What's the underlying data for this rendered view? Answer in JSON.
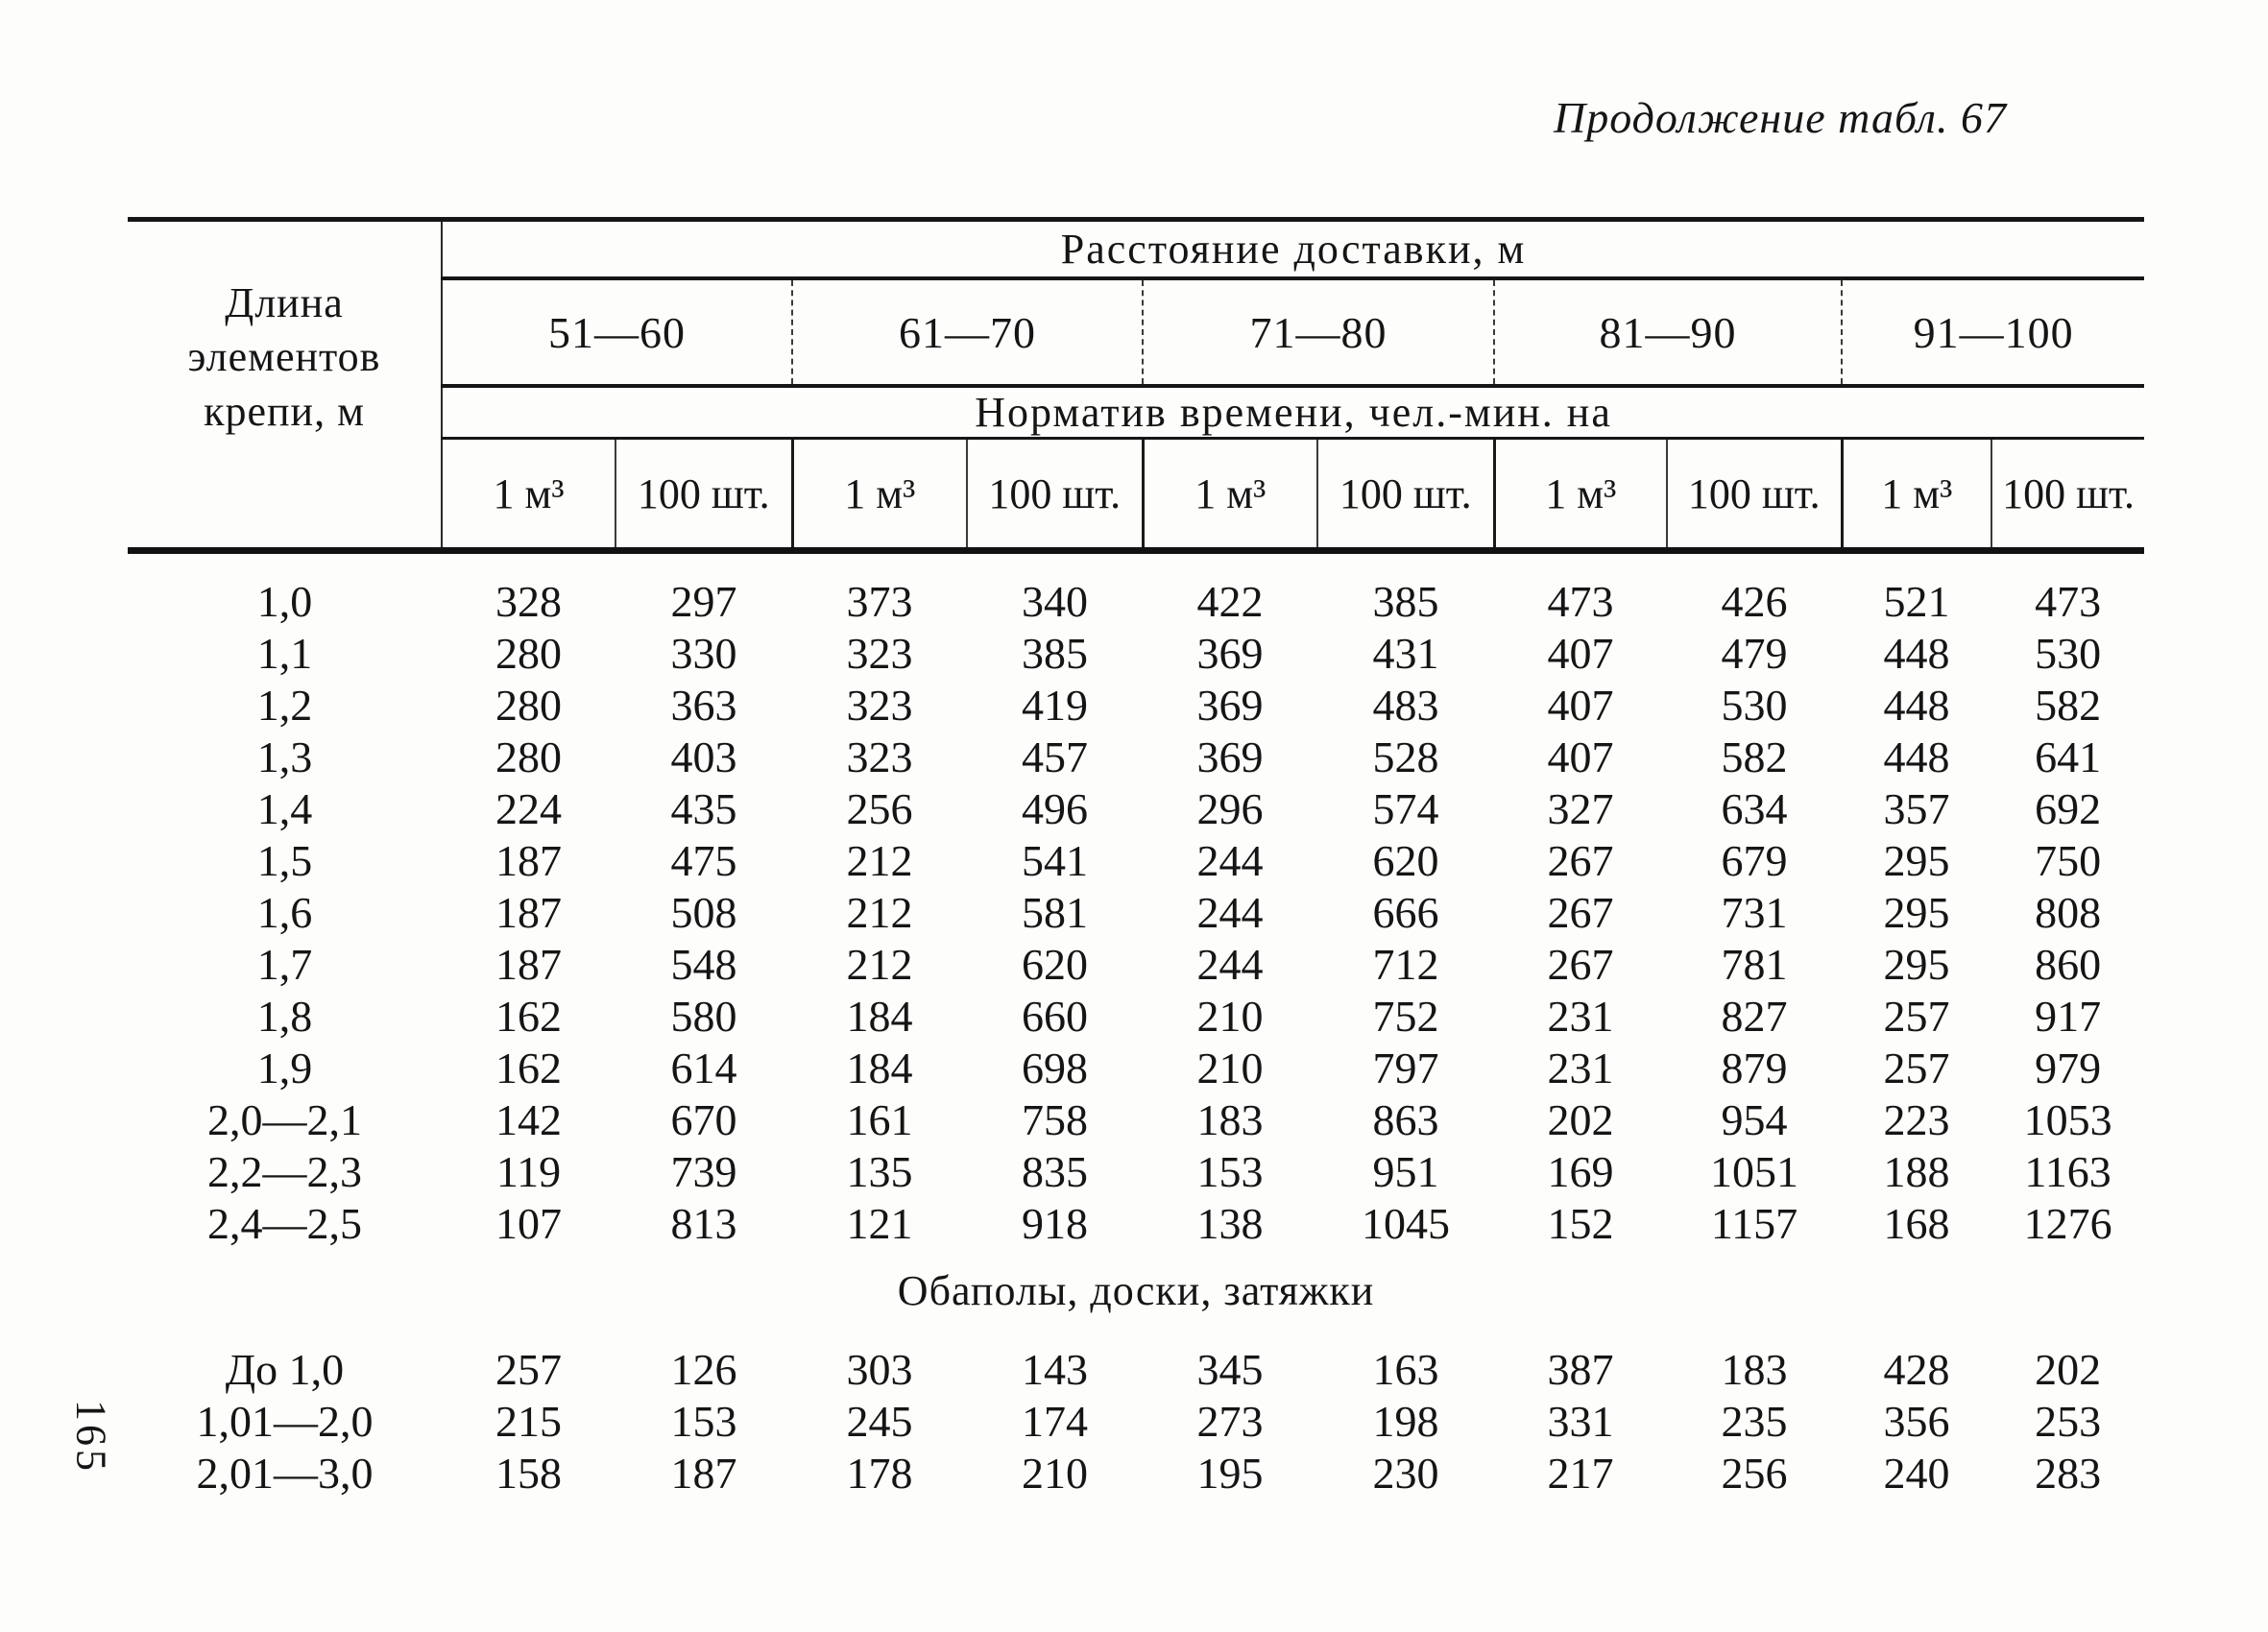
{
  "page": {
    "title": "Продолжение табл. 67",
    "page_number": "165"
  },
  "table": {
    "stub_header": "Длина элементов крепи, м",
    "distance_header": "Расстояние доставки, м",
    "time_header": "Норматив времени, чел.-мин. на",
    "distance_ranges": [
      "51—60",
      "61—70",
      "71—80",
      "81—90",
      "91—100"
    ],
    "unit_headers": [
      "1 м³",
      "100 шт."
    ],
    "sections": [
      {
        "title": "",
        "rows": [
          {
            "label": "1,0",
            "values": [
              328,
              297,
              373,
              340,
              422,
              385,
              473,
              426,
              521,
              473
            ]
          },
          {
            "label": "1,1",
            "values": [
              280,
              330,
              323,
              385,
              369,
              431,
              407,
              479,
              448,
              530
            ]
          },
          {
            "label": "1,2",
            "values": [
              280,
              363,
              323,
              419,
              369,
              483,
              407,
              530,
              448,
              582
            ]
          },
          {
            "label": "1,3",
            "values": [
              280,
              403,
              323,
              457,
              369,
              528,
              407,
              582,
              448,
              641
            ]
          },
          {
            "label": "1,4",
            "values": [
              224,
              435,
              256,
              496,
              296,
              574,
              327,
              634,
              357,
              692
            ]
          },
          {
            "label": "1,5",
            "values": [
              187,
              475,
              212,
              541,
              244,
              620,
              267,
              679,
              295,
              750
            ]
          },
          {
            "label": "1,6",
            "values": [
              187,
              508,
              212,
              581,
              244,
              666,
              267,
              731,
              295,
              808
            ]
          },
          {
            "label": "1,7",
            "values": [
              187,
              548,
              212,
              620,
              244,
              712,
              267,
              781,
              295,
              860
            ]
          },
          {
            "label": "1,8",
            "values": [
              162,
              580,
              184,
              660,
              210,
              752,
              231,
              827,
              257,
              917
            ]
          },
          {
            "label": "1,9",
            "values": [
              162,
              614,
              184,
              698,
              210,
              797,
              231,
              879,
              257,
              979
            ]
          },
          {
            "label": "2,0—2,1",
            "values": [
              142,
              670,
              161,
              758,
              183,
              863,
              202,
              954,
              223,
              1053
            ]
          },
          {
            "label": "2,2—2,3",
            "values": [
              119,
              739,
              135,
              835,
              153,
              951,
              169,
              1051,
              188,
              1163
            ]
          },
          {
            "label": "2,4—2,5",
            "values": [
              107,
              813,
              121,
              918,
              138,
              1045,
              152,
              1157,
              168,
              1276
            ]
          }
        ]
      },
      {
        "title": "Обаполы, доски, затяжки",
        "rows": [
          {
            "label": "До 1,0",
            "values": [
              257,
              126,
              303,
              143,
              345,
              163,
              387,
              183,
              428,
              202
            ]
          },
          {
            "label": "1,01—2,0",
            "values": [
              215,
              153,
              245,
              174,
              273,
              198,
              331,
              235,
              356,
              253
            ]
          },
          {
            "label": "2,01—3,0",
            "values": [
              158,
              187,
              178,
              210,
              195,
              230,
              217,
              256,
              240,
              283
            ]
          }
        ]
      }
    ]
  }
}
